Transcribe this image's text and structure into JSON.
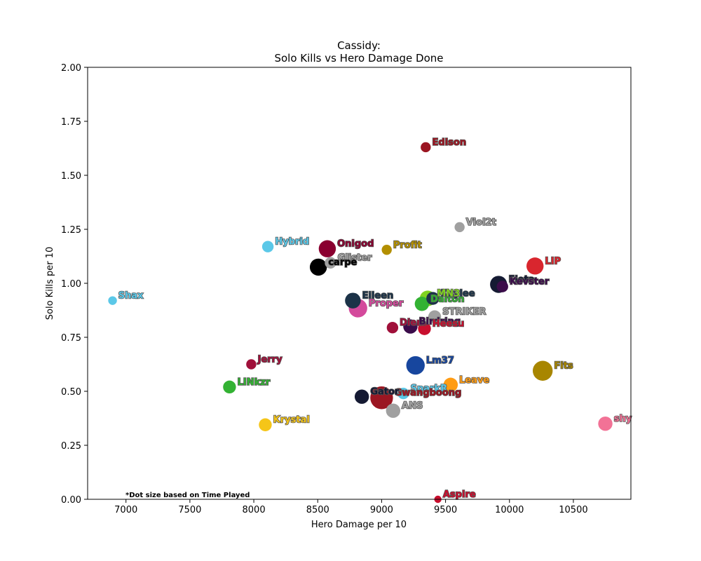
{
  "chart_data": {
    "type": "scatter",
    "title": "Cassidy:",
    "subtitle": "Solo Kills vs Hero Damage Done",
    "xlabel": "Hero Damage per 10",
    "ylabel": "Solo Kills per 10",
    "xlim": [
      6700,
      10950
    ],
    "ylim": [
      0,
      2.0
    ],
    "xticks": [
      7000,
      7500,
      8000,
      8500,
      9000,
      9500,
      10000,
      10500
    ],
    "xtick_labels": [
      "7000",
      "7500",
      "8000",
      "8500",
      "9000",
      "9500",
      "10000",
      "10500"
    ],
    "yticks": [
      0,
      0.25,
      0.5,
      0.75,
      1.0,
      1.25,
      1.5,
      1.75,
      2.0
    ],
    "ytick_labels": [
      "0.00",
      "0.25",
      "0.50",
      "0.75",
      "1.00",
      "1.25",
      "1.50",
      "1.75",
      "2.00"
    ],
    "grid": false,
    "annotation": "*Dot size based on Time Played",
    "size_encoding": "Time Played",
    "points": [
      {
        "name": "Shax",
        "x": 6895,
        "y": 0.92,
        "size": 3,
        "color": "#5bc8e8"
      },
      {
        "name": "Hybrid",
        "x": 8110,
        "y": 1.17,
        "size": 5,
        "color": "#5bc8e8"
      },
      {
        "name": "Jerry",
        "x": 7980,
        "y": 0.625,
        "size": 4,
        "color": "#a0103a"
      },
      {
        "name": "LINkzr",
        "x": 7810,
        "y": 0.52,
        "size": 6,
        "color": "#33b233"
      },
      {
        "name": "Krystal",
        "x": 8090,
        "y": 0.345,
        "size": 6,
        "color": "#f5c518"
      },
      {
        "name": "Onigod",
        "x": 8575,
        "y": 1.16,
        "size": 9,
        "color": "#8a0030"
      },
      {
        "name": "Glister",
        "x": 8600,
        "y": 1.095,
        "size": 5,
        "color": "#a0a0a0"
      },
      {
        "name": "carpe",
        "x": 8505,
        "y": 1.075,
        "size": 9,
        "color": "#000000"
      },
      {
        "name": "Profit",
        "x": 9040,
        "y": 1.155,
        "size": 4,
        "color": "#b38f00"
      },
      {
        "name": "Edison",
        "x": 9345,
        "y": 1.63,
        "size": 4,
        "color": "#9b1622"
      },
      {
        "name": "Viol2t",
        "x": 9610,
        "y": 1.26,
        "size": 4,
        "color": "#a0a0a0"
      },
      {
        "name": "Eileen",
        "x": 8775,
        "y": 0.92,
        "size": 8,
        "color": "#1c3348"
      },
      {
        "name": "Proper",
        "x": 8815,
        "y": 0.885,
        "size": 10,
        "color": "#d44a9c"
      },
      {
        "name": "Dalton",
        "x": 9315,
        "y": 0.905,
        "size": 7,
        "color": "#33b233"
      },
      {
        "name": "Kaylee",
        "x": 9400,
        "y": 0.93,
        "size": 6,
        "color": "#1c3348"
      },
      {
        "name": "MN3",
        "x": 9360,
        "y": 0.93,
        "size": 8,
        "color": "#7fd321"
      },
      {
        "name": "STRIKER",
        "x": 9415,
        "y": 0.845,
        "size": 6,
        "color": "#a0a0a0"
      },
      {
        "name": "Diem",
        "x": 9085,
        "y": 0.795,
        "size": 5,
        "color": "#a0103a"
      },
      {
        "name": "Birdring",
        "x": 9225,
        "y": 0.8,
        "size": 7,
        "color": "#3b0c4a"
      },
      {
        "name": "Heesu",
        "x": 9335,
        "y": 0.79,
        "size": 6,
        "color": "#c80f2e"
      },
      {
        "name": "Fleta",
        "x": 9915,
        "y": 0.995,
        "size": 9,
        "color": "#151a33"
      },
      {
        "name": "Kevster",
        "x": 9945,
        "y": 0.985,
        "size": 5,
        "color": "#3b0c4a"
      },
      {
        "name": "LIP",
        "x": 10200,
        "y": 1.08,
        "size": 9,
        "color": "#d9262e"
      },
      {
        "name": "Lm37",
        "x": 9265,
        "y": 0.62,
        "size": 10,
        "color": "#17469e"
      },
      {
        "name": "Fits",
        "x": 10260,
        "y": 0.595,
        "size": 11,
        "color": "#a88600"
      },
      {
        "name": "Leave",
        "x": 9540,
        "y": 0.53,
        "size": 7,
        "color": "#ff9c14"
      },
      {
        "name": "SparkR",
        "x": 9170,
        "y": 0.49,
        "size": 5,
        "color": "#5bc8e8"
      },
      {
        "name": "Gwangboong",
        "x": 9000,
        "y": 0.47,
        "size": 13,
        "color": "#9b1622"
      },
      {
        "name": "Gator",
        "x": 8845,
        "y": 0.475,
        "size": 7,
        "color": "#151a33"
      },
      {
        "name": "ANS",
        "x": 9090,
        "y": 0.41,
        "size": 7,
        "color": "#a0a0a0"
      },
      {
        "name": "shy",
        "x": 10750,
        "y": 0.35,
        "size": 7,
        "color": "#f27296"
      },
      {
        "name": "Aspire",
        "x": 9440,
        "y": 0.0,
        "size": 2,
        "color": "#c80f2e"
      }
    ]
  }
}
